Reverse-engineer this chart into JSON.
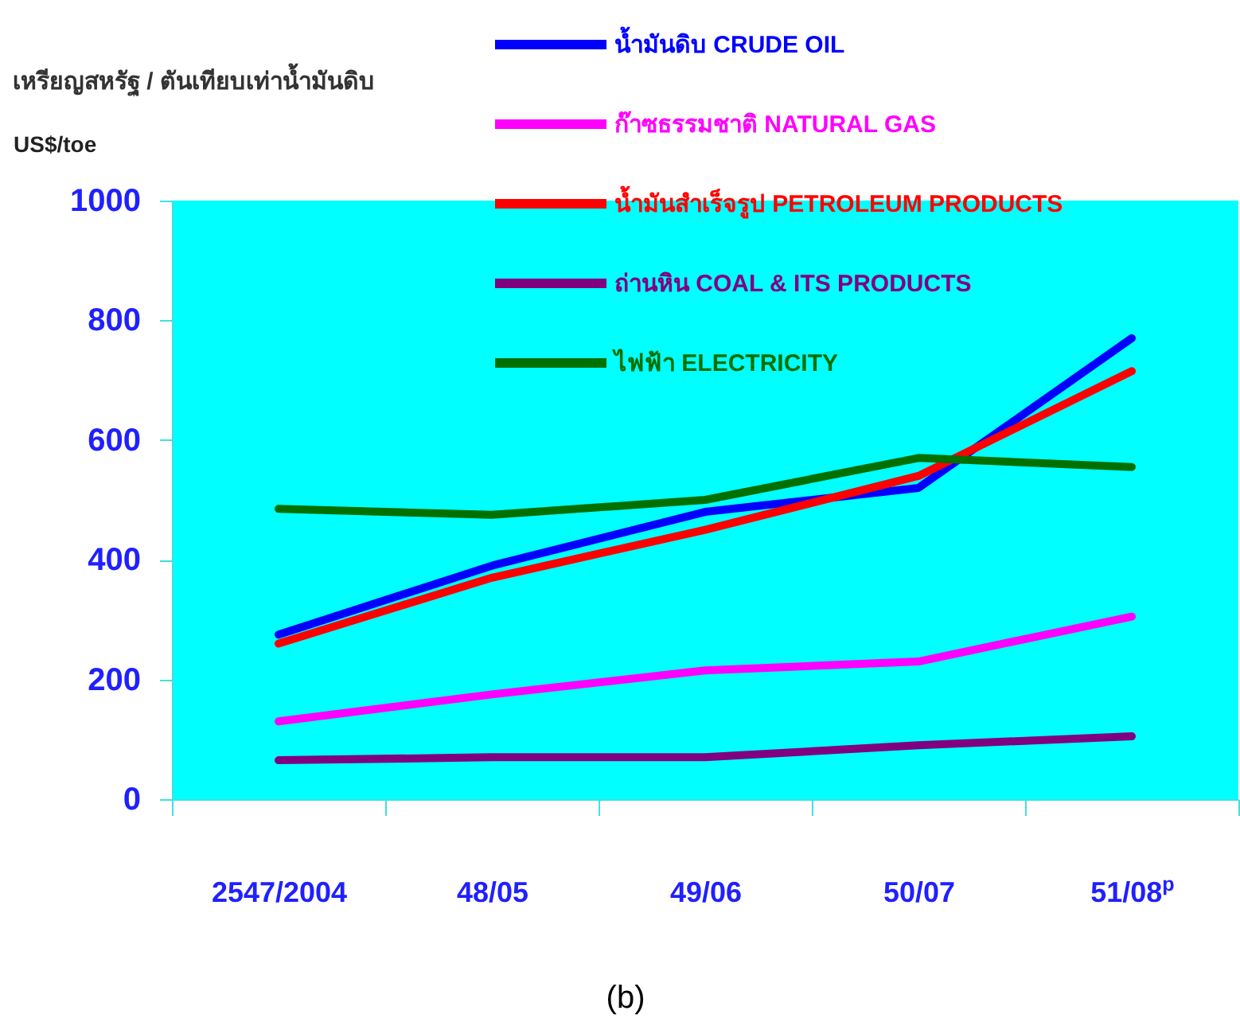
{
  "chart_data": {
    "type": "line",
    "title": "เหรียญสหรัฐ / ตันเทียบเท่าน้ำมันดิบ",
    "ylabel": "US$/toe",
    "categories": [
      "2547/2004",
      "48/05",
      "49/06",
      "50/07",
      "51/08$^{p}$"
    ],
    "series": [
      {
        "name": "น้ำมันดิบ CRUDE OIL",
        "color": "#0000ff",
        "values": [
          275,
          390,
          480,
          520,
          770
        ]
      },
      {
        "name": "ก๊าซธรรมชาติ NATURAL GAS",
        "color": "#ff00ff",
        "values": [
          130,
          175,
          215,
          230,
          305
        ]
      },
      {
        "name": "น้ำมันสำเร็จรูป PETROLEUM PRODUCTS",
        "color": "#ff0000",
        "values": [
          260,
          370,
          450,
          540,
          715
        ]
      },
      {
        "name": "ถ่านหิน COAL & ITS PRODUCTS",
        "color": "#800080",
        "values": [
          65,
          70,
          70,
          90,
          105
        ]
      },
      {
        "name": "ไฟฟ้า ELECTRICITY",
        "color": "#007000",
        "values": [
          485,
          475,
          500,
          570,
          555
        ]
      }
    ],
    "ylim": [
      0,
      1000
    ],
    "yticks": [
      0,
      200,
      400,
      600,
      800,
      1000
    ],
    "grid": false,
    "legend": "top",
    "line_style": "solid",
    "annotations": [
      "(b)"
    ]
  }
}
